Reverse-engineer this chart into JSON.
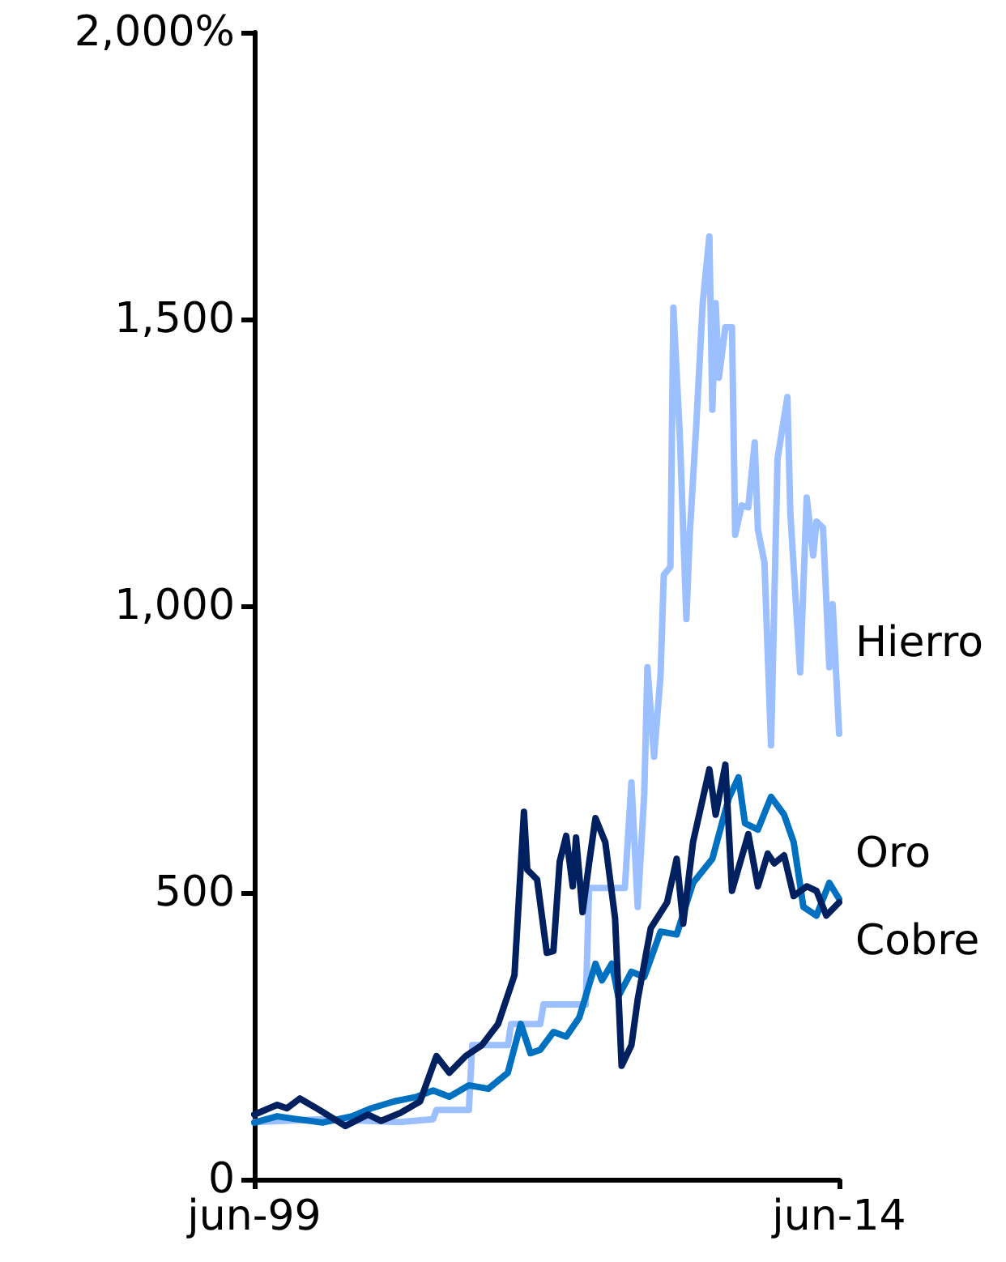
{
  "chart_data": {
    "type": "line",
    "xlim": [
      "1999-06",
      "2014-06"
    ],
    "xticks": [
      {
        "value": "1999-06",
        "label": "jun-99"
      },
      {
        "value": "2014-06",
        "label": "jun-14"
      }
    ],
    "ylim": [
      0,
      2000
    ],
    "yticks": [
      {
        "value": 0,
        "label": "0"
      },
      {
        "value": 500,
        "label": "500"
      },
      {
        "value": 1000,
        "label": "1,000"
      },
      {
        "value": 1500,
        "label": "1,500"
      },
      {
        "value": 2000,
        "label": "2,000%"
      }
    ],
    "grid": false,
    "legend": false,
    "marker": "none",
    "line_style": "solid",
    "series": [
      {
        "name": "Hierro",
        "color": "#9bbfff",
        "x": [
          "1999-06",
          "2001-03",
          "2003-03",
          "2004-01",
          "2004-02",
          "2004-12",
          "2005-01",
          "2005-12",
          "2006-01",
          "2006-10",
          "2006-11",
          "2007-12",
          "2008-01",
          "2008-12",
          "2009-02",
          "2009-04",
          "2009-06",
          "2009-07",
          "2009-09",
          "2009-11",
          "2009-12",
          "2010-02",
          "2010-03",
          "2010-05",
          "2010-07",
          "2010-08",
          "2010-10",
          "2010-12",
          "2011-02",
          "2011-03",
          "2011-04",
          "2011-05",
          "2011-07",
          "2011-09",
          "2011-10",
          "2011-12",
          "2012-02",
          "2012-04",
          "2012-05",
          "2012-07",
          "2012-09",
          "2012-11",
          "2013-02",
          "2013-03",
          "2013-06",
          "2013-08",
          "2013-10",
          "2013-11",
          "2014-01",
          "2014-03",
          "2014-04",
          "2014-06"
        ],
        "values": [
          100,
          105,
          100,
          105,
          121,
          121,
          234,
          234,
          271,
          271,
          305,
          305,
          508,
          508,
          692,
          475,
          672,
          893,
          737,
          879,
          1054,
          1068,
          1520,
          1294,
          977,
          1124,
          1314,
          1528,
          1644,
          1342,
          1528,
          1398,
          1486,
          1486,
          1124,
          1175,
          1172,
          1285,
          1133,
          1076,
          757,
          1257,
          1364,
          1161,
          884,
          1189,
          1088,
          1147,
          1136,
          893,
          1003,
          777
        ]
      },
      {
        "name": "Oro",
        "color": "#0070c0",
        "x": [
          "1999-06",
          "2000-01",
          "2000-07",
          "2001-03",
          "2001-12",
          "2002-06",
          "2003-01",
          "2003-08",
          "2004-01",
          "2004-06",
          "2004-12",
          "2005-06",
          "2005-12",
          "2006-04",
          "2006-07",
          "2006-10",
          "2007-02",
          "2007-06",
          "2007-10",
          "2008-03",
          "2008-05",
          "2008-08",
          "2008-10",
          "2009-02",
          "2009-06",
          "2009-11",
          "2010-04",
          "2010-09",
          "2011-03",
          "2011-08",
          "2011-11",
          "2012-01",
          "2012-05",
          "2012-09",
          "2013-01",
          "2013-04",
          "2013-07",
          "2013-11",
          "2014-03",
          "2014-06"
        ],
        "values": [
          99,
          110,
          105,
          99,
          110,
          124,
          136,
          144,
          155,
          144,
          164,
          158,
          186,
          271,
          220,
          226,
          257,
          249,
          282,
          376,
          347,
          376,
          319,
          362,
          353,
          432,
          427,
          517,
          559,
          664,
          701,
          621,
          610,
          667,
          636,
          588,
          475,
          460,
          517,
          489
        ]
      },
      {
        "name": "Cobre",
        "color": "#002060",
        "x": [
          "1999-06",
          "2000-01",
          "2000-04",
          "2000-08",
          "2001-02",
          "2001-10",
          "2002-05",
          "2002-09",
          "2003-03",
          "2003-09",
          "2004-02",
          "2004-06",
          "2004-11",
          "2005-04",
          "2005-09",
          "2006-02",
          "2006-05",
          "2006-06",
          "2006-09",
          "2006-12",
          "2007-02",
          "2007-04",
          "2007-06",
          "2007-08",
          "2007-09",
          "2007-11",
          "2008-01",
          "2008-03",
          "2008-06",
          "2008-09",
          "2008-11",
          "2009-02",
          "2009-04",
          "2009-08",
          "2010-01",
          "2010-04",
          "2010-06",
          "2010-09",
          "2011-02",
          "2011-04",
          "2011-07",
          "2011-09",
          "2012-02",
          "2012-05",
          "2012-08",
          "2012-10",
          "2013-01",
          "2013-04",
          "2013-08",
          "2013-11",
          "2014-02",
          "2014-06"
        ],
        "values": [
          113,
          130,
          124,
          141,
          121,
          93,
          113,
          102,
          116,
          136,
          215,
          186,
          215,
          234,
          271,
          356,
          641,
          540,
          523,
          395,
          398,
          554,
          599,
          511,
          596,
          466,
          551,
          630,
          588,
          455,
          198,
          234,
          314,
          438,
          483,
          559,
          446,
          588,
          715,
          636,
          723,
          503,
          602,
          511,
          568,
          551,
          565,
          494,
          511,
          503,
          460,
          483
        ]
      }
    ]
  }
}
